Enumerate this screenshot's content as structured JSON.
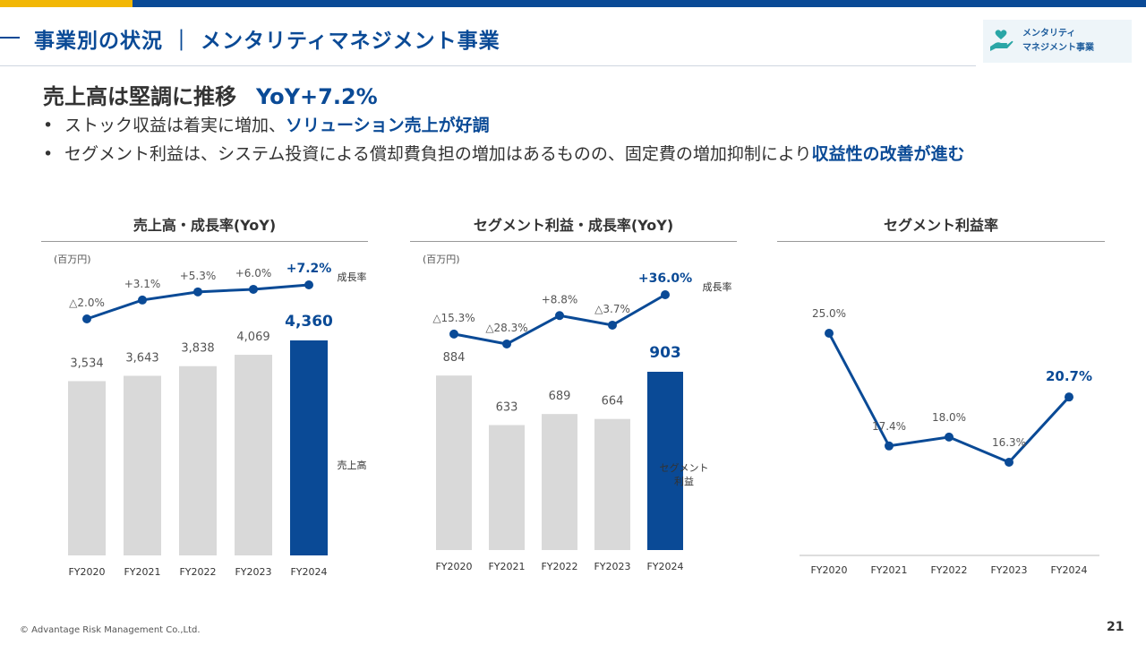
{
  "slide": {
    "title": "事業別の状況 ｜ メンタリティマネジメント事業",
    "logo_line1": "メンタリティ",
    "logo_line2": "マネジメント事業",
    "logo_icon": "heart-hand-icon",
    "headline": "売上高は堅調に推移",
    "headline_yoy": "YoY+7.2%",
    "bullets": [
      {
        "text": "ストック収益は着実に増加、",
        "highlight": "ソリューション売上が好調"
      },
      {
        "text": "セグメント利益は、システム投資による償却費負担の増加はあるものの、固定費の増加抑制により",
        "highlight": "収益性の改善が進む"
      }
    ],
    "footer": "© Advantage Risk Management Co.,Ltd.",
    "page_number": "21"
  },
  "colors": {
    "brand": "#0a4a96",
    "bar_gray": "#d9d9d9",
    "accent": "#f2b705"
  },
  "chart_data": [
    {
      "type": "bar",
      "title": "売上高・成長率(YoY)",
      "unit_label": "(百万円)",
      "categories": [
        "FY2020",
        "FY2021",
        "FY2022",
        "FY2023",
        "FY2024"
      ],
      "values": [
        3534,
        3643,
        3838,
        4069,
        4360
      ],
      "value_labels": [
        "3,534",
        "3,643",
        "3,838",
        "4,069",
        "4,360"
      ],
      "bar_series_name": "売上高",
      "line_series_name": "成長率",
      "line_values": [
        -2.0,
        3.1,
        5.3,
        6.0,
        7.2
      ],
      "line_labels": [
        "△2.0%",
        "+3.1%",
        "+5.3%",
        "+6.0%",
        "+7.2%"
      ],
      "highlight_index": 4
    },
    {
      "type": "bar",
      "title": "セグメント利益・成長率(YoY)",
      "unit_label": "(百万円)",
      "categories": [
        "FY2020",
        "FY2021",
        "FY2022",
        "FY2023",
        "FY2024"
      ],
      "values": [
        884,
        633,
        689,
        664,
        903
      ],
      "value_labels": [
        "884",
        "633",
        "689",
        "664",
        "903"
      ],
      "bar_series_name_lines": [
        "セグメント",
        "利益"
      ],
      "line_series_name": "成長率",
      "line_values": [
        -15.3,
        -28.3,
        8.8,
        -3.7,
        36.0
      ],
      "line_labels": [
        "△15.3%",
        "△28.3%",
        "+8.8%",
        "△3.7%",
        "+36.0%"
      ],
      "highlight_index": 4
    },
    {
      "type": "line",
      "title": "セグメント利益率",
      "categories": [
        "FY2020",
        "FY2021",
        "FY2022",
        "FY2023",
        "FY2024"
      ],
      "values": [
        25.0,
        17.4,
        18.0,
        16.3,
        20.7
      ],
      "value_labels": [
        "25.0%",
        "17.4%",
        "18.0%",
        "16.3%",
        "20.7%"
      ],
      "highlight_index": 4
    }
  ]
}
